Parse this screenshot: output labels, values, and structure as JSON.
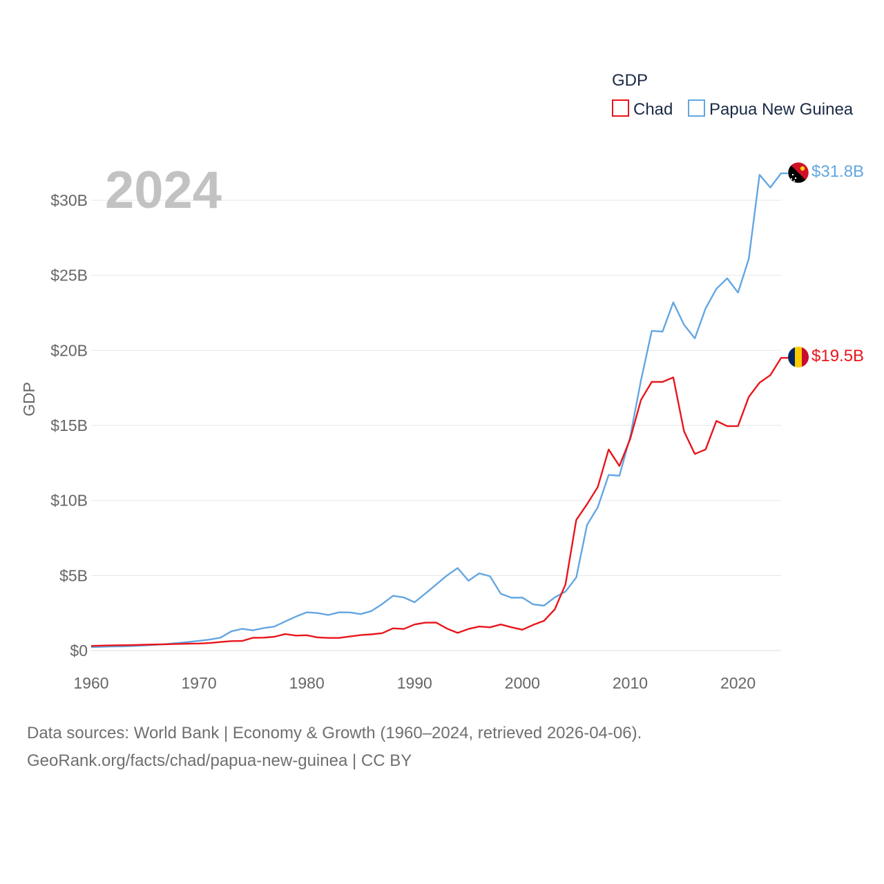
{
  "chart_data": {
    "type": "line",
    "title": "",
    "highlight_year": "2024",
    "ylabel": "GDP",
    "xlabel": "",
    "legend_title": "GDP",
    "legend_position": "top-right",
    "xlim": [
      1960,
      2024
    ],
    "ylim": [
      0,
      32
    ],
    "x_ticks": [
      1960,
      1970,
      1980,
      1990,
      2000,
      2010,
      2020
    ],
    "x_tick_labels": [
      "1960",
      "1970",
      "1980",
      "1990",
      "2000",
      "2010",
      "2020"
    ],
    "y_ticks": [
      0,
      5,
      10,
      15,
      20,
      25,
      30
    ],
    "y_tick_labels": [
      "$0",
      "$5B",
      "$10B",
      "$15B",
      "$20B",
      "$25B",
      "$30B"
    ],
    "grid": true,
    "x": [
      1960,
      1961,
      1962,
      1963,
      1964,
      1965,
      1966,
      1967,
      1968,
      1969,
      1970,
      1971,
      1972,
      1973,
      1974,
      1975,
      1976,
      1977,
      1978,
      1979,
      1980,
      1981,
      1982,
      1983,
      1984,
      1985,
      1986,
      1987,
      1988,
      1989,
      1990,
      1991,
      1992,
      1993,
      1994,
      1995,
      1996,
      1997,
      1998,
      1999,
      2000,
      2001,
      2002,
      2003,
      2004,
      2005,
      2006,
      2007,
      2008,
      2009,
      2010,
      2011,
      2012,
      2013,
      2014,
      2015,
      2016,
      2017,
      2018,
      2019,
      2020,
      2021,
      2022,
      2023,
      2024
    ],
    "series": [
      {
        "name": "Chad",
        "color": "#e8151b",
        "end_label": "$19.5B",
        "flag": "chad-flag",
        "values": [
          0.31,
          0.33,
          0.35,
          0.36,
          0.37,
          0.39,
          0.41,
          0.42,
          0.44,
          0.46,
          0.47,
          0.5,
          0.57,
          0.63,
          0.64,
          0.85,
          0.86,
          0.92,
          1.1,
          1.0,
          1.02,
          0.88,
          0.84,
          0.84,
          0.94,
          1.03,
          1.08,
          1.16,
          1.48,
          1.44,
          1.74,
          1.86,
          1.87,
          1.47,
          1.18,
          1.44,
          1.6,
          1.55,
          1.74,
          1.55,
          1.39,
          1.71,
          1.98,
          2.74,
          4.41,
          8.7,
          9.75,
          10.9,
          13.4,
          12.3,
          14.1,
          16.7,
          17.9,
          17.9,
          18.2,
          14.6,
          13.1,
          13.4,
          15.3,
          14.95,
          14.96,
          16.9,
          17.85,
          18.35,
          19.5
        ]
      },
      {
        "name": "Papua New Guinea",
        "color": "#63a6e2",
        "end_label": "$31.8B",
        "flag": "png-flag",
        "values": [
          0.23,
          0.25,
          0.27,
          0.28,
          0.31,
          0.34,
          0.38,
          0.44,
          0.5,
          0.57,
          0.65,
          0.73,
          0.86,
          1.28,
          1.45,
          1.35,
          1.5,
          1.6,
          1.94,
          2.27,
          2.55,
          2.5,
          2.37,
          2.55,
          2.54,
          2.43,
          2.63,
          3.1,
          3.65,
          3.54,
          3.22,
          3.8,
          4.4,
          5.0,
          5.5,
          4.65,
          5.15,
          4.95,
          3.78,
          3.52,
          3.53,
          3.08,
          2.99,
          3.54,
          3.93,
          4.87,
          8.37,
          9.55,
          11.7,
          11.65,
          14.25,
          18.0,
          21.3,
          21.25,
          23.2,
          21.7,
          20.8,
          22.8,
          24.1,
          24.8,
          23.85,
          26.1,
          31.7,
          30.85,
          31.8
        ]
      }
    ]
  },
  "footer": {
    "line1": "Data sources: World Bank | Economy & Growth (1960–2024, retrieved 2026-04-06).",
    "line2": "GeoRank.org/facts/chad/papua-new-guinea | CC BY"
  }
}
